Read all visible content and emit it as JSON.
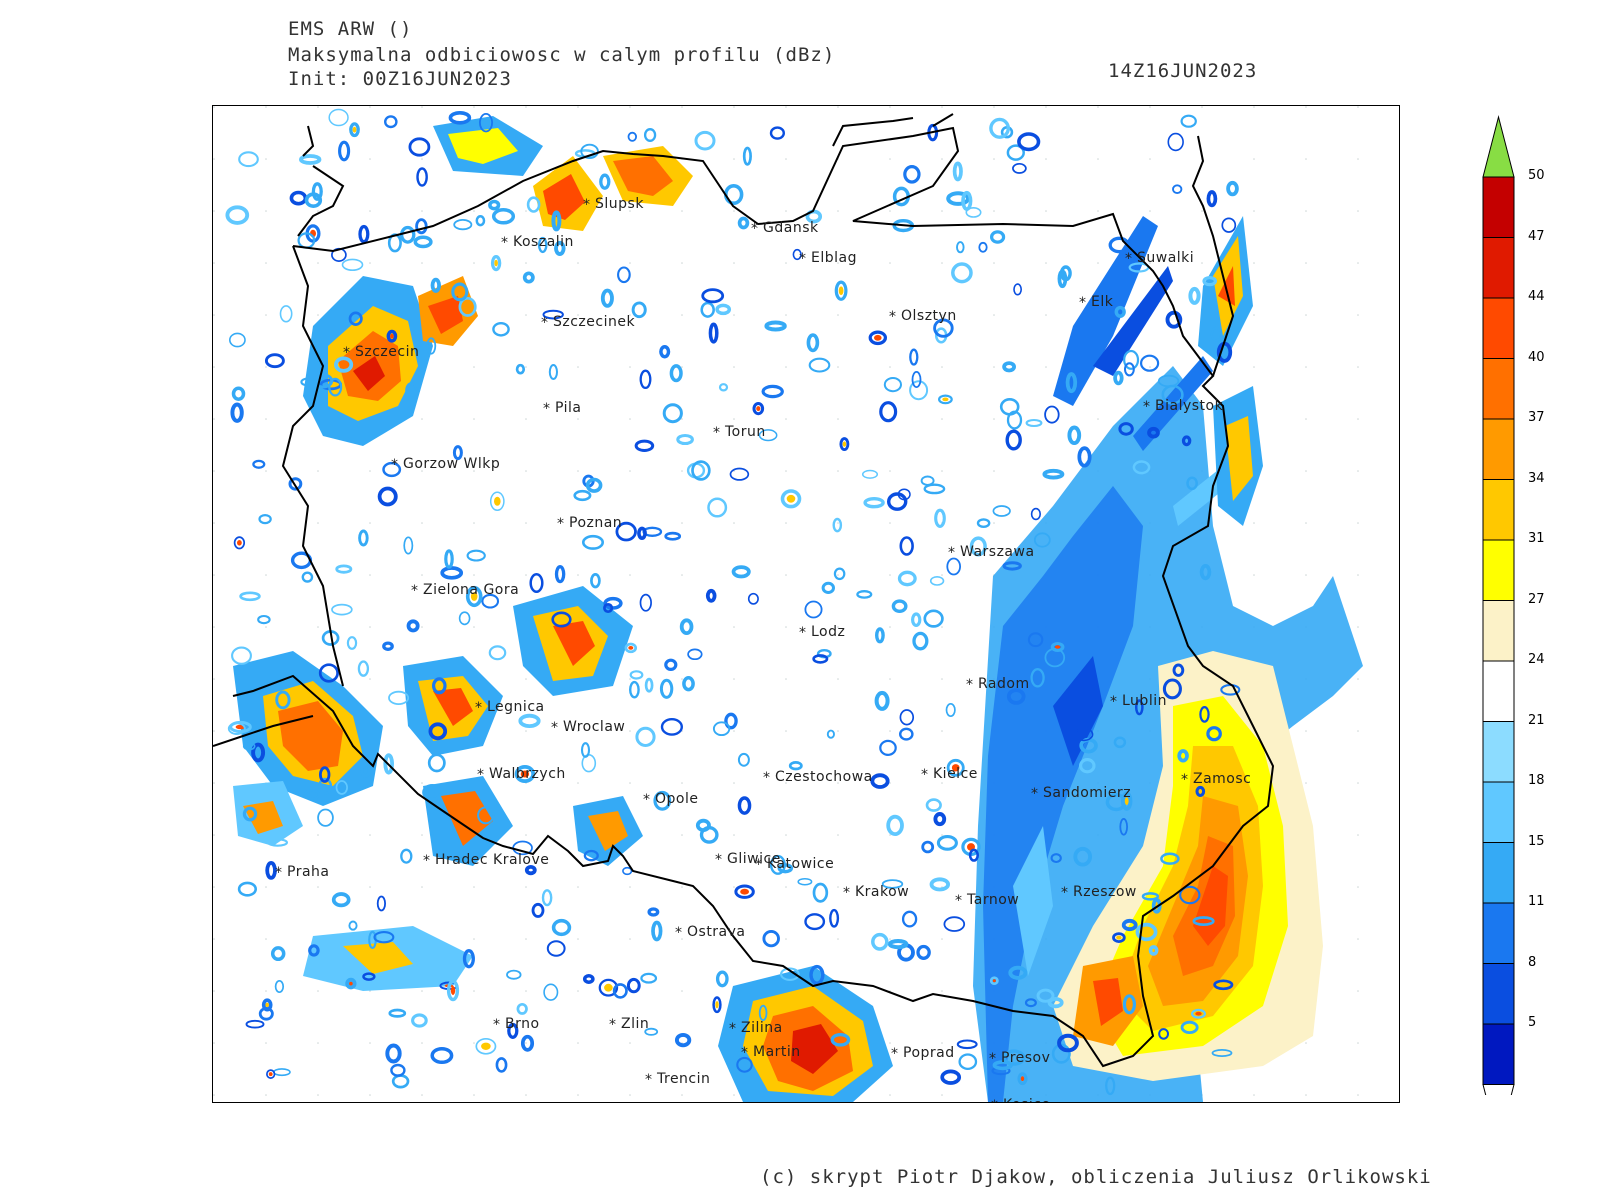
{
  "header": {
    "model": "EMS ARW ()",
    "field": "Maksymalna odbiciowosc w calym profilu (dBz)",
    "init": "Init: 00Z16JUN2023",
    "valid": "14Z16JUN2023"
  },
  "footer": "(c) skrypt Piotr Djakow, obliczenia Juliusz Orlikowski",
  "colorbar": {
    "labels": [
      "50",
      "47",
      "44",
      "40",
      "37",
      "34",
      "31",
      "27",
      "24",
      "21",
      "18",
      "15",
      "11",
      "8",
      "5"
    ],
    "colors": [
      "#c40000",
      "#e01a00",
      "#ff4a00",
      "#ff7000",
      "#ff9a00",
      "#ffc800",
      "#ffff00",
      "#fcf2c8",
      "#ffffff",
      "#8cdcff",
      "#60c8ff",
      "#35aaf5",
      "#1a78f0",
      "#0a4ee0",
      "#0018c0"
    ],
    "top_color": "#88dd44",
    "bottom_color": "#ffffff"
  },
  "cities": [
    {
      "name": "Slupsk"
    },
    {
      "name": "Koszalin"
    },
    {
      "name": "Gdansk"
    },
    {
      "name": "Elblag"
    },
    {
      "name": "Suwalki"
    },
    {
      "name": "Elk"
    },
    {
      "name": "Szczecinek"
    },
    {
      "name": "Olsztyn"
    },
    {
      "name": "Szczecin"
    },
    {
      "name": "Bialystok"
    },
    {
      "name": "Pila"
    },
    {
      "name": "Torun"
    },
    {
      "name": "Gorzow Wlkp"
    },
    {
      "name": "Poznan"
    },
    {
      "name": "Warszawa"
    },
    {
      "name": "Zielona Gora"
    },
    {
      "name": "Lodz"
    },
    {
      "name": "Radom"
    },
    {
      "name": "Lublin"
    },
    {
      "name": "Legnica"
    },
    {
      "name": "Wroclaw"
    },
    {
      "name": "Walbrzych"
    },
    {
      "name": "Czestochowa"
    },
    {
      "name": "Kielce"
    },
    {
      "name": "Zamosc"
    },
    {
      "name": "Opole"
    },
    {
      "name": "Sandomierz"
    },
    {
      "name": "Praha"
    },
    {
      "name": "Hradec Kralove"
    },
    {
      "name": "Gliwice"
    },
    {
      "name": "Katowice"
    },
    {
      "name": "Krakow"
    },
    {
      "name": "Rzeszow"
    },
    {
      "name": "Tarnow"
    },
    {
      "name": "Ostrava"
    },
    {
      "name": "Brno"
    },
    {
      "name": "Zlin"
    },
    {
      "name": "Zilina"
    },
    {
      "name": "Martin"
    },
    {
      "name": "Poprad"
    },
    {
      "name": "Presov"
    },
    {
      "name": "Trencin"
    },
    {
      "name": "Kosice"
    }
  ]
}
